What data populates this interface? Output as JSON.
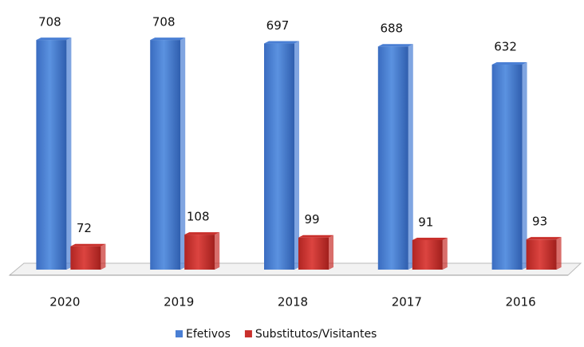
{
  "chart_data": {
    "type": "bar3d",
    "categories": [
      "2020",
      "2019",
      "2018",
      "2017",
      "2016"
    ],
    "series": [
      {
        "name": "Efetivos",
        "color": "#4a7fd4",
        "values": [
          708,
          708,
          697,
          688,
          632
        ]
      },
      {
        "name": "Substitutos/Visitantes",
        "color": "#c9302c",
        "values": [
          72,
          108,
          99,
          91,
          93
        ]
      }
    ],
    "ylim": [
      0,
      750
    ],
    "legend": "bottom"
  }
}
